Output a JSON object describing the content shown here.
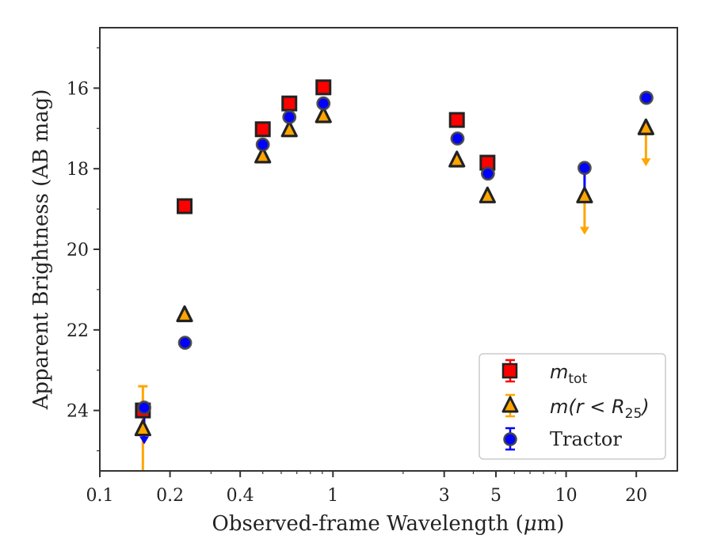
{
  "chart_data": {
    "type": "scatter",
    "xscale": "log",
    "yaxis_inverted": true,
    "xlim": [
      0.1,
      30
    ],
    "ylim": [
      25.5,
      14.5
    ],
    "xlabel_text": "Observed-frame Wavelength (",
    "xlabel_mu": "μ",
    "xlabel_unit": "m)",
    "ylabel": "Apparent Brightness (AB mag)",
    "x_ticks": [
      0.1,
      0.2,
      0.4,
      1,
      3,
      5,
      10,
      20
    ],
    "x_tick_labels": [
      "0.1",
      "0.2",
      "0.4",
      "1",
      "3",
      "5",
      "10",
      "20"
    ],
    "y_ticks": [
      16,
      18,
      20,
      22,
      24
    ],
    "y_tick_labels": [
      "16",
      "18",
      "20",
      "22",
      "24"
    ],
    "legend_position": "lower-right",
    "legend": {
      "mtot_main": "m",
      "mtot_sub": "tot",
      "mr25_prefix": "m(r < R",
      "mr25_sub": "25",
      "mr25_suffix": ")",
      "tractor": "Tractor"
    },
    "series": [
      {
        "name": "m_tot",
        "marker": "square",
        "color": "#ff0000",
        "edge": "#222222",
        "points": [
          {
            "x": 0.153,
            "y": 24.0
          },
          {
            "x": 0.231,
            "y": 18.93
          },
          {
            "x": 0.5,
            "y": 17.02
          },
          {
            "x": 0.65,
            "y": 16.38
          },
          {
            "x": 0.91,
            "y": 15.98
          },
          {
            "x": 3.4,
            "y": 16.79
          },
          {
            "x": 4.6,
            "y": 17.85
          }
        ]
      },
      {
        "name": "m(r<R25)",
        "marker": "triangle",
        "color": "#ffa500",
        "edge": "#222222",
        "points": [
          {
            "x": 0.153,
            "y": 24.45,
            "err_lo": 1.5,
            "err_hi": 1.05
          },
          {
            "x": 0.231,
            "y": 21.62
          },
          {
            "x": 0.5,
            "y": 17.68
          },
          {
            "x": 0.65,
            "y": 17.03
          },
          {
            "x": 0.91,
            "y": 16.68
          },
          {
            "x": 3.4,
            "y": 17.78
          },
          {
            "x": 4.6,
            "y": 18.67
          },
          {
            "x": 12.0,
            "y": 18.67,
            "upper_limit": true,
            "arrow_to": 19.6
          },
          {
            "x": 22.0,
            "y": 16.98,
            "upper_limit": true,
            "arrow_to": 17.9
          }
        ]
      },
      {
        "name": "Tractor",
        "marker": "circle",
        "color": "#0000ff",
        "edge": "#444444",
        "points": [
          {
            "x": 0.155,
            "y": 23.93,
            "upper_limit": true,
            "arrow_to": 24.8
          },
          {
            "x": 0.232,
            "y": 22.32
          },
          {
            "x": 0.5,
            "y": 17.4
          },
          {
            "x": 0.65,
            "y": 16.72
          },
          {
            "x": 0.91,
            "y": 16.38
          },
          {
            "x": 3.42,
            "y": 17.25
          },
          {
            "x": 4.62,
            "y": 18.12
          },
          {
            "x": 12.0,
            "y": 17.98,
            "err_lo": 0.75
          },
          {
            "x": 22.1,
            "y": 16.24
          }
        ]
      }
    ]
  }
}
